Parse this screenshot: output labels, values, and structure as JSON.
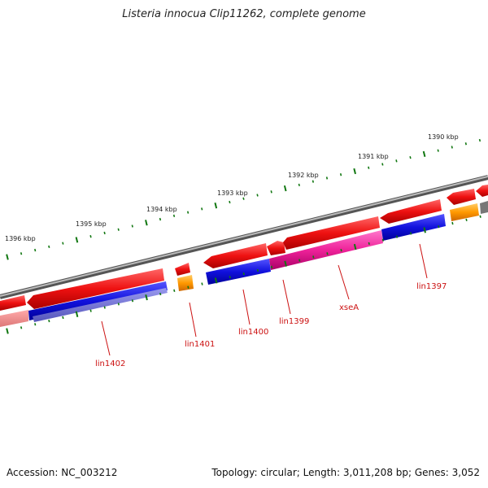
{
  "title": "Listeria innocua Clip11262, complete genome",
  "scale_labels": [
    "1396 kbp",
    "1395 kbp",
    "1394 kbp",
    "1393 kbp",
    "1392 kbp",
    "1391 kbp",
    "1390 kbp"
  ],
  "gene_labels": [
    "lin1402",
    "lin1401",
    "lin1400",
    "lin1399",
    "xseA",
    "lin1397"
  ],
  "footer": {
    "accession": "Accession: NC_003212",
    "topology": "Topology: circular; Length: 3,011,208 bp; Genes: 3,052"
  },
  "colors": {
    "backbone": "#7a7a7a",
    "cds": "#ee1111",
    "blast_hit": "#1111dd",
    "highlight": "#ee2299",
    "rna": "#ff9900",
    "tick": "#117711",
    "label": "#cc1111"
  }
}
